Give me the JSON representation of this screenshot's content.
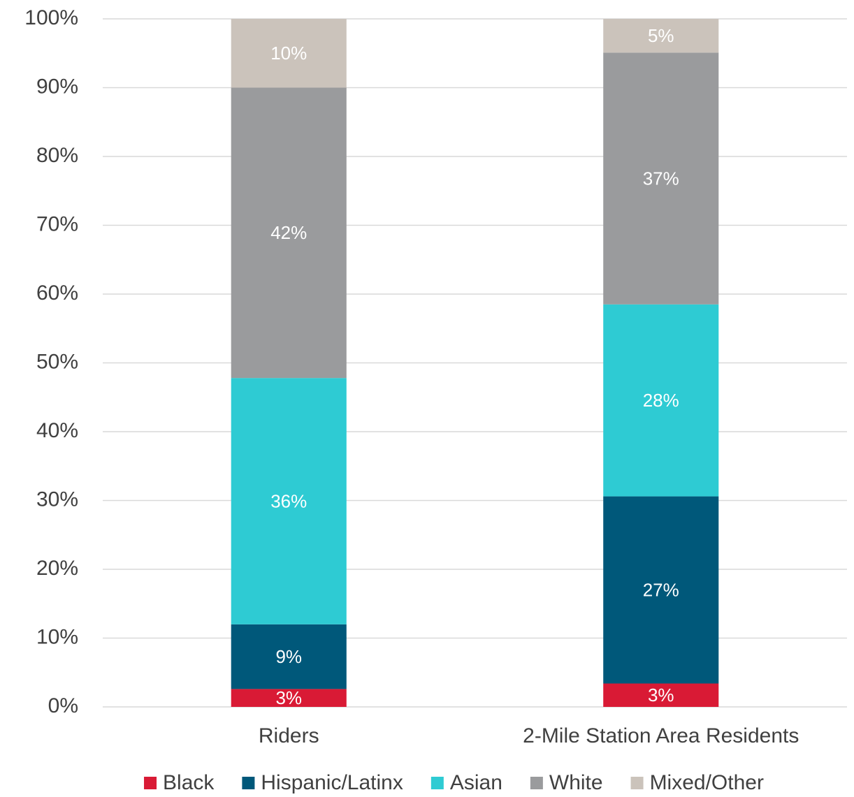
{
  "chart_data": {
    "type": "stacked_bar",
    "categories": [
      "Riders",
      "2-Mile Station Area Residents"
    ],
    "series": [
      {
        "name": "Black",
        "color": "#d91a35",
        "values": [
          2.6,
          3.4
        ],
        "value_labels": [
          "3%",
          "3%"
        ]
      },
      {
        "name": "Hispanic/Latinx",
        "color": "#00587a",
        "values": [
          9.4,
          27.2
        ],
        "value_labels": [
          "9%",
          "27%"
        ]
      },
      {
        "name": "Asian",
        "color": "#2ecbd3",
        "values": [
          35.8,
          27.9
        ],
        "value_labels": [
          "36%",
          "28%"
        ]
      },
      {
        "name": "White",
        "color": "#9a9b9d",
        "values": [
          42.2,
          36.6
        ],
        "value_labels": [
          "42%",
          "37%"
        ]
      },
      {
        "name": "Mixed/Other",
        "color": "#cbc3bb",
        "values": [
          10.0,
          4.9
        ],
        "value_labels": [
          "10%",
          "5%"
        ]
      }
    ],
    "ylim": [
      0,
      100
    ],
    "yticks": [
      {
        "value": 0,
        "label": "0%"
      },
      {
        "value": 10,
        "label": "10%"
      },
      {
        "value": 20,
        "label": "20%"
      },
      {
        "value": 30,
        "label": "30%"
      },
      {
        "value": 40,
        "label": "40%"
      },
      {
        "value": 50,
        "label": "50%"
      },
      {
        "value": 60,
        "label": "60%"
      },
      {
        "value": 70,
        "label": "70%"
      },
      {
        "value": 80,
        "label": "80%"
      },
      {
        "value": 90,
        "label": "90%"
      },
      {
        "value": 100,
        "label": "100%"
      }
    ],
    "grid": true,
    "legend": "bottom"
  }
}
